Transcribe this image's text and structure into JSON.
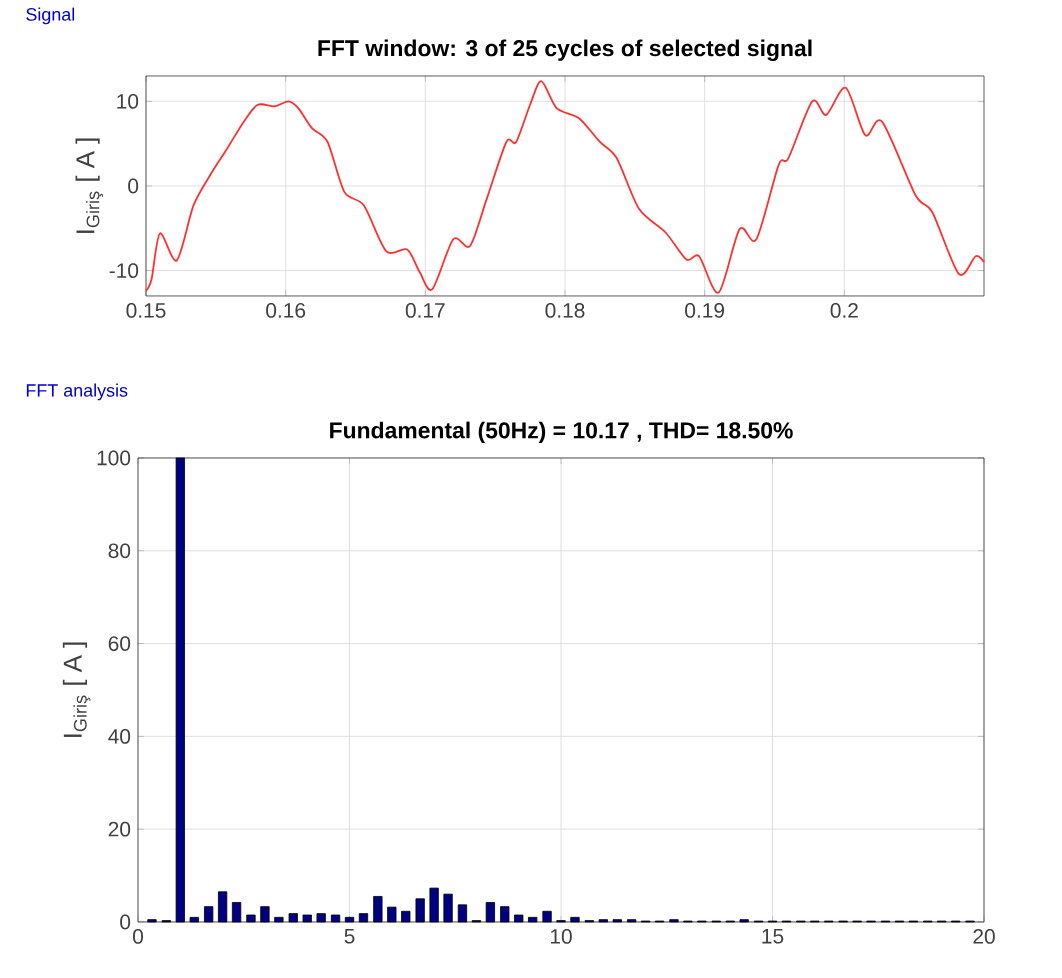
{
  "chart_data": [
    {
      "type": "line",
      "title": "FFT window: 3 of 25 cycles of selected signal",
      "ylabel": "I$_{Giriş}$  [ A ]",
      "annotations": [
        "Signal"
      ],
      "x": [
        0.15,
        0.1504,
        0.151,
        0.1522,
        0.1534,
        0.1546,
        0.1558,
        0.157,
        0.158,
        0.1592,
        0.1602,
        0.1609,
        0.1619,
        0.163,
        0.1642,
        0.1656,
        0.1672,
        0.1687,
        0.1696,
        0.1705,
        0.172,
        0.1732,
        0.1744,
        0.1758,
        0.1765,
        0.1775,
        0.1783,
        0.1794,
        0.181,
        0.1825,
        0.1837,
        0.1853,
        0.1872,
        0.1887,
        0.1896,
        0.191,
        0.1925,
        0.1937,
        0.1953,
        0.196,
        0.1977,
        0.1987,
        0.2001,
        0.2015,
        0.2027,
        0.2051,
        0.2063,
        0.2082,
        0.2094,
        0.21
      ],
      "series": [
        {
          "color": "#ff3030",
          "values": [
            -12.4,
            -11.0,
            -5.6,
            -8.8,
            -2.3,
            1.3,
            4.4,
            7.6,
            9.6,
            9.4,
            10.0,
            9.2,
            6.8,
            5.2,
            -0.7,
            -2.3,
            -7.7,
            -7.5,
            -10.2,
            -12.2,
            -6.3,
            -7.1,
            -1.5,
            5.2,
            5.2,
            9.6,
            12.4,
            9.2,
            8.0,
            5.2,
            3.3,
            -2.7,
            -5.5,
            -8.7,
            -8.3,
            -12.6,
            -5.1,
            -6.3,
            2.5,
            3.3,
            10.0,
            8.4,
            11.6,
            6.0,
            7.6,
            -1.1,
            -3.1,
            -10.4,
            -8.3,
            -9.0
          ]
        }
      ],
      "xlim": [
        0.15,
        0.21
      ],
      "ylim": [
        -13,
        13
      ],
      "xticks": [
        0.15,
        0.16,
        0.17,
        0.18,
        0.19,
        0.2
      ],
      "yticks": [
        -10,
        0,
        10
      ],
      "grid": true
    },
    {
      "type": "bar",
      "title": "Fundamental (50Hz) = 10.17 , THD= 18.50%",
      "ylabel": "I$_{Giriş}$  [ A ]",
      "annotations": [
        "FFT analysis"
      ],
      "x": [
        0.33,
        0.67,
        1,
        1.33,
        1.67,
        2,
        2.33,
        2.67,
        3,
        3.33,
        3.67,
        4,
        4.33,
        4.67,
        5,
        5.33,
        5.67,
        6,
        6.33,
        6.67,
        7,
        7.33,
        7.67,
        8,
        8.33,
        8.67,
        9,
        9.33,
        9.67,
        10,
        10.33,
        10.67,
        11,
        11.33,
        11.67,
        12,
        12.33,
        12.67,
        13,
        13.33,
        13.67,
        14,
        14.33,
        14.67,
        15,
        15.33,
        15.67,
        16,
        16.33,
        16.67,
        17,
        17.33,
        17.67,
        18,
        18.33,
        18.67,
        19,
        19.33,
        19.67
      ],
      "series": [
        {
          "color": "#000080",
          "values": [
            0.5,
            0.3,
            100,
            1,
            3.3,
            6.5,
            4.2,
            1.5,
            3.3,
            1,
            1.8,
            1.5,
            1.8,
            1.5,
            1,
            1.8,
            5.5,
            3.2,
            2.3,
            5,
            7.3,
            6,
            3.7,
            0.3,
            4.2,
            3.3,
            1.5,
            1,
            2.3,
            0.3,
            1,
            0.3,
            0.5,
            0.5,
            0.5,
            0.2,
            0.2,
            0.5,
            0.2,
            0.2,
            0.2,
            0.2,
            0.5,
            0.2,
            0.2,
            0.2,
            0.2,
            0.2,
            0.2,
            0.2,
            0.2,
            0.2,
            0.2,
            0.2,
            0.2,
            0.2,
            0.2,
            0.2,
            0.2
          ]
        }
      ],
      "xlim": [
        0,
        20
      ],
      "ylim": [
        0,
        100
      ],
      "xticks": [
        0,
        5,
        10,
        15,
        20
      ],
      "yticks": [
        0,
        20,
        40,
        60,
        80,
        100
      ],
      "grid": true
    }
  ]
}
